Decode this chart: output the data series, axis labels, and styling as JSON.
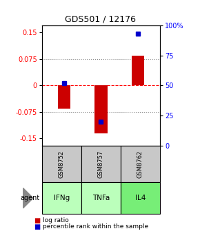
{
  "title": "GDS501 / 12176",
  "samples": [
    "GSM8752",
    "GSM8757",
    "GSM8762"
  ],
  "agents": [
    "IFNg",
    "TNFa",
    "IL4"
  ],
  "log_ratios": [
    -0.065,
    -0.135,
    0.085
  ],
  "percentile_ranks": [
    0.52,
    0.2,
    0.93
  ],
  "ylim_left": [
    -0.17,
    0.17
  ],
  "ylim_right": [
    0,
    1.0
  ],
  "yticks_left": [
    -0.15,
    -0.075,
    0,
    0.075,
    0.15
  ],
  "ytick_labels_left": [
    "-0.15",
    "-0.075",
    "0",
    "0.075",
    "0.15"
  ],
  "yticks_right": [
    0,
    0.25,
    0.5,
    0.75,
    1.0
  ],
  "ytick_labels_right": [
    "0",
    "25",
    "50",
    "75",
    "100%"
  ],
  "bar_color": "#cc0000",
  "dot_color": "#0000cc",
  "sample_box_color": "#c8c8c8",
  "agent_color_ifng": "#bbffbb",
  "agent_color_tnfa": "#bbffbb",
  "agent_color_il4": "#77ee77",
  "bar_width": 0.35
}
